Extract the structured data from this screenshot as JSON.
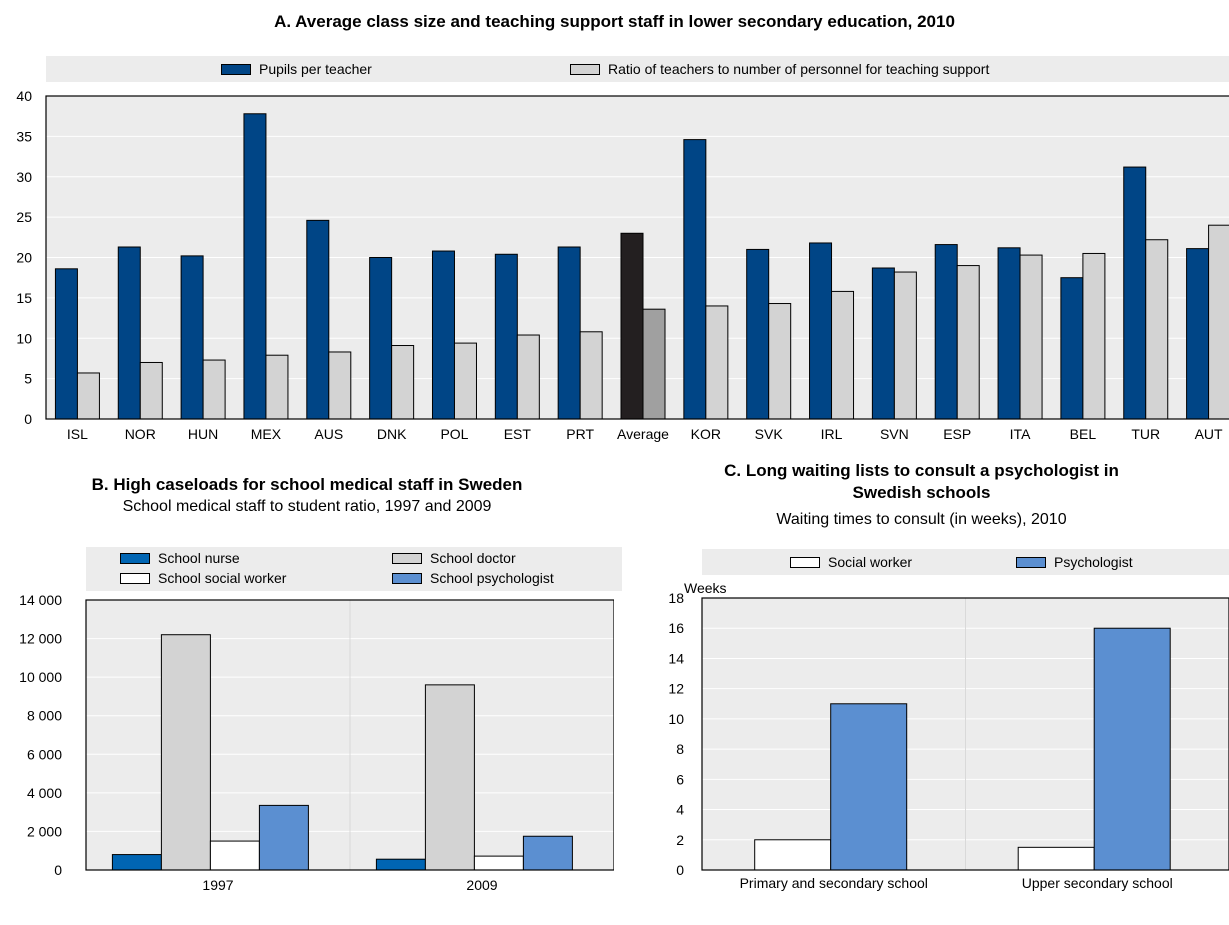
{
  "chart_data": [
    {
      "id": "A",
      "type": "bar",
      "title": "A. Average class size and teaching support staff in lower secondary education, 2010",
      "categories": [
        "ISL",
        "NOR",
        "HUN",
        "MEX",
        "AUS",
        "DNK",
        "POL",
        "EST",
        "PRT",
        "Average",
        "KOR",
        "SVK",
        "IRL",
        "SVN",
        "ESP",
        "ITA",
        "BEL",
        "TUR",
        "AUT"
      ],
      "series": [
        {
          "name": "Pupils per teacher",
          "color": "#004586",
          "values": [
            18.6,
            21.3,
            20.2,
            37.8,
            24.6,
            20.0,
            20.8,
            20.4,
            21.3,
            23.0,
            34.6,
            21.0,
            21.8,
            18.7,
            21.6,
            21.2,
            17.5,
            31.2,
            21.1
          ]
        },
        {
          "name": "Ratio of teachers to number of personnel for teaching support",
          "color": "#d3d3d3",
          "values": [
            5.7,
            7.0,
            7.3,
            7.9,
            8.3,
            9.1,
            9.4,
            10.4,
            10.8,
            13.6,
            14.0,
            14.3,
            15.8,
            18.2,
            19.0,
            20.3,
            20.5,
            22.2,
            24.0
          ]
        }
      ],
      "highlight": {
        "category": "Average",
        "colors": [
          "#231f20",
          "#a0a0a0"
        ]
      },
      "ylim": [
        0,
        40
      ],
      "yticks": [
        0,
        5,
        10,
        15,
        20,
        25,
        30,
        35,
        40
      ],
      "grid": true,
      "legend_position": "top"
    },
    {
      "id": "B",
      "type": "bar",
      "title": "B. High caseloads for school medical staff in Sweden",
      "subtitle": "School medical staff to student ratio, 1997 and 2009",
      "categories": [
        "1997",
        "2009"
      ],
      "series": [
        {
          "name": "School nurse",
          "color": "#0065b3",
          "values": [
            800,
            560
          ]
        },
        {
          "name": "School doctor",
          "color": "#d3d3d3",
          "values": [
            12200,
            9600
          ]
        },
        {
          "name": "School social worker",
          "color": "#ffffff",
          "values": [
            1500,
            720
          ]
        },
        {
          "name": "School psychologist",
          "color": "#5b8fd1",
          "values": [
            3350,
            1750
          ]
        }
      ],
      "ylim": [
        0,
        14000
      ],
      "yticks": [
        "0",
        "2 000",
        "4 000",
        "6 000",
        "8 000",
        "10 000",
        "12 000",
        "14 000"
      ],
      "grid": true,
      "legend_position": "top"
    },
    {
      "id": "C",
      "type": "bar",
      "title": "C. Long waiting lists to consult a psychologist in Swedish schools",
      "subtitle": "Waiting times to consult (in weeks), 2010",
      "ylabel": "Weeks",
      "categories": [
        "Primary and secondary school",
        "Upper secondary school"
      ],
      "series": [
        {
          "name": "Social worker",
          "color": "#ffffff",
          "values": [
            2,
            1.5
          ]
        },
        {
          "name": "Psychologist",
          "color": "#5b8fd1",
          "values": [
            11,
            16
          ]
        }
      ],
      "ylim": [
        0,
        18
      ],
      "yticks": [
        0,
        2,
        4,
        6,
        8,
        10,
        12,
        14,
        16,
        18
      ],
      "grid": true,
      "legend_position": "top"
    }
  ],
  "panelB": {
    "title_line1": "B. High caseloads for school medical staff in Sweden",
    "subtitle": "School medical staff to student ratio, 1997 and 2009"
  },
  "panelC": {
    "title_line1": "C. Long waiting lists to consult a psychologist in",
    "title_line2": "Swedish schools",
    "subtitle": "Waiting times to consult (in weeks), 2010"
  }
}
